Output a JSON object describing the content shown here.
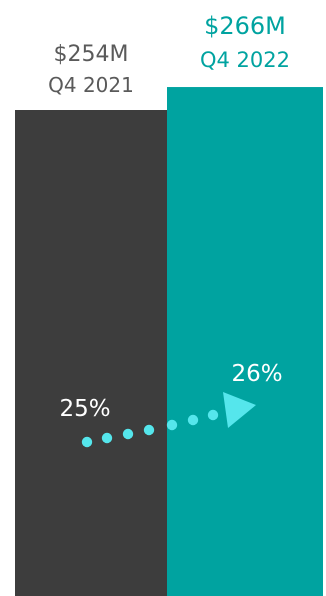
{
  "chart_data": {
    "type": "bar",
    "categories": [
      "Q4 2021",
      "Q4 2022"
    ],
    "value_labels": [
      "$254M",
      "$266M"
    ],
    "values": [
      254,
      266
    ],
    "unit": "$M",
    "inner_labels": [
      "25%",
      "26%"
    ],
    "inner_values": [
      25,
      26
    ],
    "annotation": "dotted arrow from 25% to 26%",
    "colors": [
      "#3d3d3d",
      "#00a3a0"
    ],
    "label_colors": [
      "#5a5a5a",
      "#00a3a0"
    ],
    "inner_label_color": "#ffffff",
    "arrow_color": "#55e6ec",
    "title": "",
    "xlabel": "",
    "ylabel": ""
  }
}
